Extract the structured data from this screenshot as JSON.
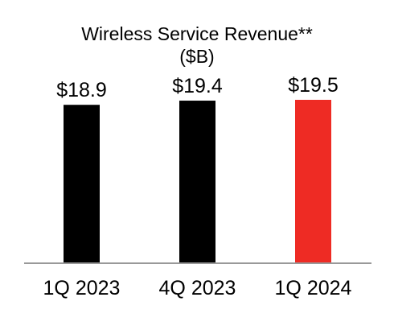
{
  "chart_data": {
    "type": "bar",
    "title": "Wireless Service Revenue**",
    "subtitle": "($B)",
    "categories": [
      "1Q 2023",
      "4Q 2023",
      "1Q 2024"
    ],
    "values": [
      18.9,
      19.4,
      19.5
    ],
    "value_labels": [
      "$18.9",
      "$19.4",
      "$19.5"
    ],
    "bar_colors": [
      "#000000",
      "#000000",
      "#ee2b24"
    ],
    "axis_color": "#999999",
    "ylim": [
      0,
      19.5
    ],
    "grid": false,
    "legend": "none"
  }
}
